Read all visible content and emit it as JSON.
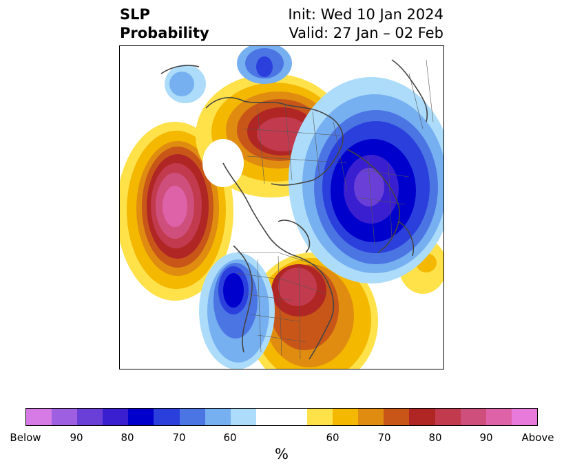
{
  "title": {
    "left_line1": "SLP",
    "left_line2": "Probability",
    "right_line1": "Init: Wed 10 Jan 2024",
    "right_line2": "Valid: 27 Jan – 02 Feb"
  },
  "colorbar": {
    "unit": "%",
    "tick_labels": [
      "Below",
      "90",
      "80",
      "70",
      "60",
      "60",
      "70",
      "80",
      "90",
      "Above"
    ],
    "below_colors": [
      "#d67ae6",
      "#9e5fe0",
      "#6a3fd8",
      "#3a1fd0",
      "#0000cc",
      "#2a3fdc",
      "#4c75e4",
      "#76b0f0",
      "#acdcfa"
    ],
    "neutral_color": "#ffffff",
    "above_colors": [
      "#ffe14a",
      "#f4b800",
      "#e08c10",
      "#c85618",
      "#b02624",
      "#c23a4e",
      "#cf4f7c",
      "#dd62a8",
      "#e77ada"
    ]
  },
  "legend_icons": {
    "map": "probability-map"
  }
}
